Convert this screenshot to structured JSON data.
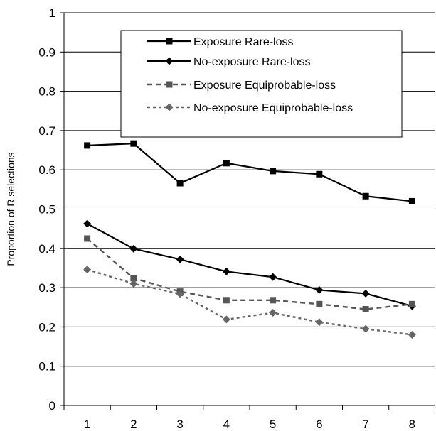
{
  "chart_data": {
    "type": "line",
    "title": "",
    "xlabel": "",
    "ylabel": "Proportion of R selections",
    "categories": [
      "1",
      "2",
      "3",
      "4",
      "5",
      "6",
      "7",
      "8"
    ],
    "ylim": [
      0,
      1
    ],
    "yticks": [
      "0",
      "0.1",
      "0.2",
      "0.3",
      "0.4",
      "0.5",
      "0.6",
      "0.7",
      "0.8",
      "0.9",
      "1"
    ],
    "grid": true,
    "legend_position": "top-right",
    "series": [
      {
        "name": "Exposure Rare-loss",
        "values": [
          0.662,
          0.667,
          0.566,
          0.617,
          0.597,
          0.589,
          0.533,
          0.52
        ],
        "marker": "square",
        "dash": "solid",
        "color": "#000000"
      },
      {
        "name": "No-exposure Rare-loss",
        "values": [
          0.463,
          0.399,
          0.372,
          0.341,
          0.327,
          0.294,
          0.285,
          0.253
        ],
        "marker": "diamond",
        "dash": "solid",
        "color": "#000000"
      },
      {
        "name": "Exposure Equiprobable-loss",
        "values": [
          0.425,
          0.324,
          0.29,
          0.268,
          0.268,
          0.258,
          0.245,
          0.258
        ],
        "marker": "square",
        "dash": "dashed",
        "color": "#555555"
      },
      {
        "name": "No-exposure Equiprobable-loss",
        "values": [
          0.346,
          0.31,
          0.284,
          0.219,
          0.236,
          0.212,
          0.195,
          0.18
        ],
        "marker": "diamond",
        "dash": "dotted",
        "color": "#666666"
      }
    ]
  }
}
